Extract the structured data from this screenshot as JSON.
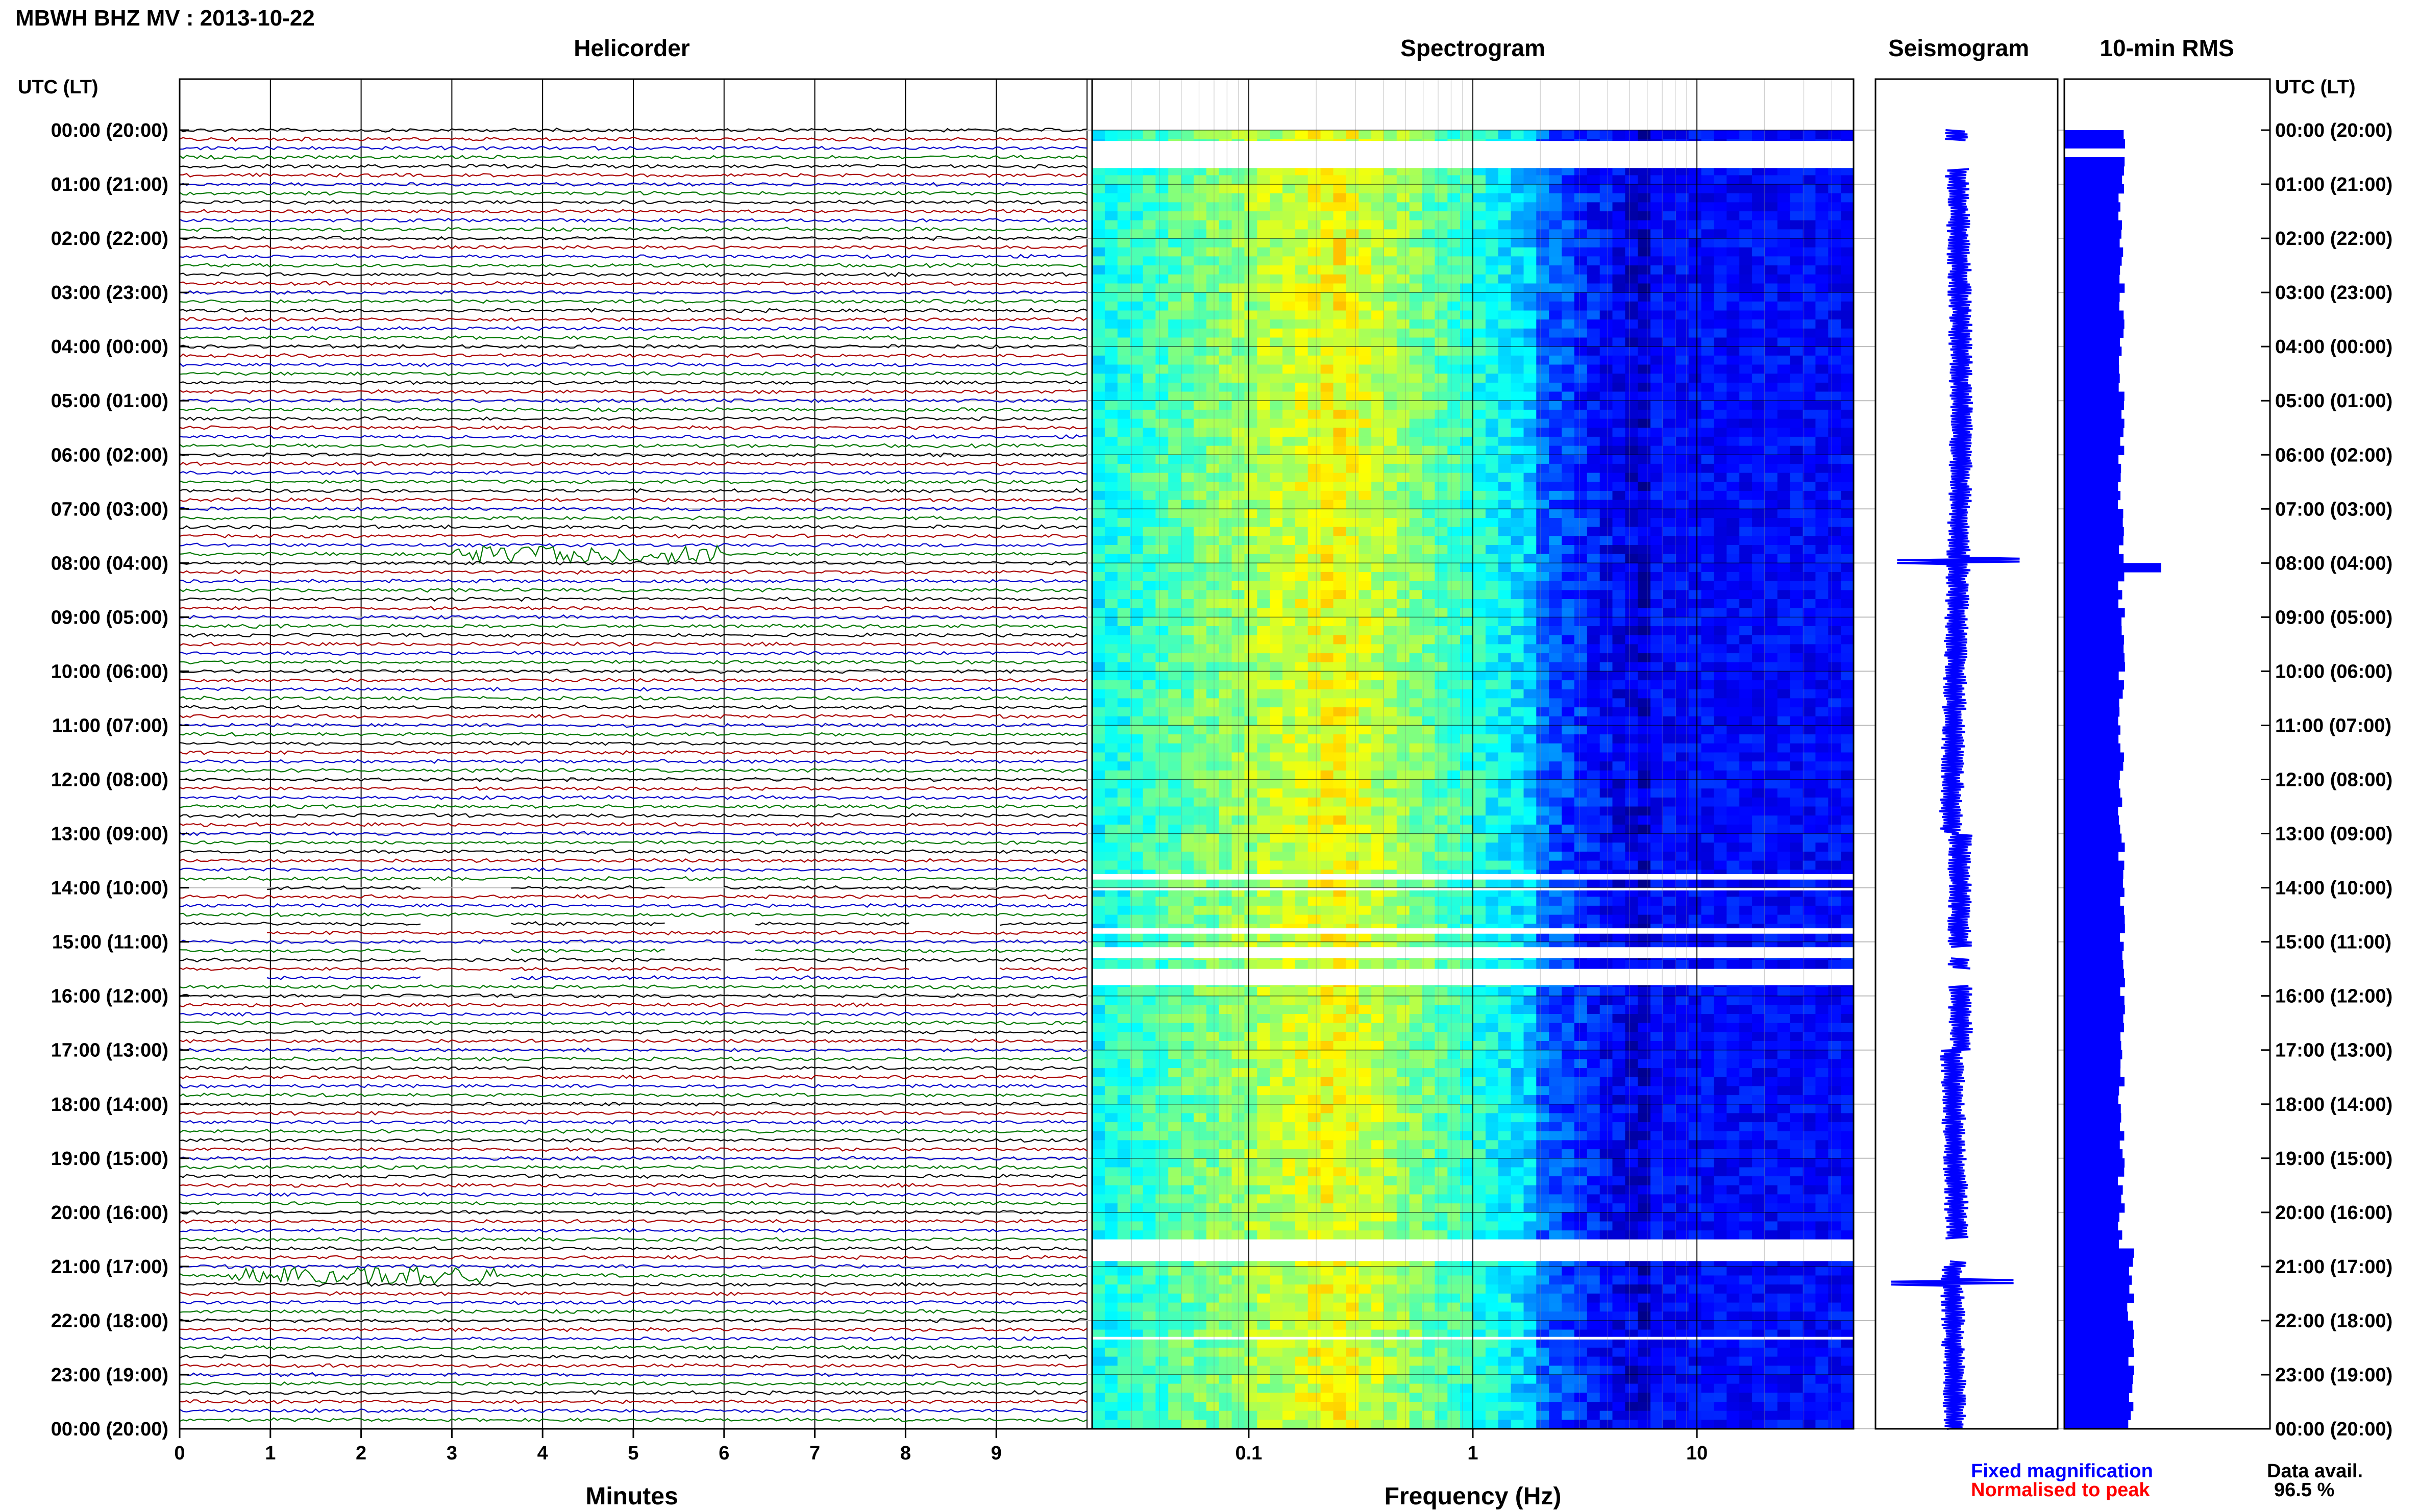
{
  "title": "MBWH BHZ MV : 2013-10-22",
  "panels": {
    "helicorder": "Helicorder",
    "spectrogram": "Spectrogram",
    "seismogram": "Seismogram",
    "rms": "10-min RMS"
  },
  "axis_header": "UTC (LT)",
  "time_labels": [
    "00:00 (20:00)",
    "01:00 (21:00)",
    "02:00 (22:00)",
    "03:00 (23:00)",
    "04:00 (00:00)",
    "05:00 (01:00)",
    "06:00 (02:00)",
    "07:00 (03:00)",
    "08:00 (04:00)",
    "09:00 (05:00)",
    "10:00 (06:00)",
    "11:00 (07:00)",
    "12:00 (08:00)",
    "13:00 (09:00)",
    "14:00 (10:00)",
    "15:00 (11:00)",
    "16:00 (12:00)",
    "17:00 (13:00)",
    "18:00 (14:00)",
    "19:00 (15:00)",
    "20:00 (16:00)",
    "21:00 (17:00)",
    "22:00 (18:00)",
    "23:00 (19:00)",
    "00:00 (20:00)"
  ],
  "legend": {
    "fixed": "Fixed magnification",
    "normalised": "Normalised to peak",
    "data_avail_label": "Data avail.",
    "data_avail_value": "96.5 %"
  },
  "colors": {
    "trace_cycle": [
      "#000000",
      "#aa0000",
      "#0000cc",
      "#007700"
    ],
    "fixed": "#0000ff",
    "normalised": "#ff0000",
    "rms_fill": "#0000ff"
  },
  "chart_data": [
    {
      "type": "line",
      "panel": "Helicorder",
      "xlabel": "Minutes",
      "x_ticks": [
        "0",
        "1",
        "2",
        "3",
        "4",
        "5",
        "6",
        "7",
        "8",
        "9"
      ],
      "xlim": [
        0,
        10
      ],
      "rows": 144,
      "row_minutes": 10,
      "events": [
        {
          "hour_utc": 7.9,
          "minute": 4.5,
          "note": "green trace burst"
        },
        {
          "hour_utc": 21.2,
          "minute": 2.0,
          "note": "spike"
        }
      ],
      "gaps_utc_hours": [
        [
          14.0,
          14.1
        ],
        [
          14.7,
          14.85
        ],
        [
          15.2,
          15.3
        ],
        [
          15.6,
          15.75
        ]
      ]
    },
    {
      "type": "heatmap",
      "panel": "Spectrogram",
      "xlabel": "Frequency (Hz)",
      "x_scale": "log",
      "x_ticks": [
        "0.1",
        "1",
        "10"
      ],
      "xlim": [
        0.02,
        50
      ],
      "peak_frequency_hz": 0.25,
      "gaps_utc_hours": [
        [
          0.2,
          0.7
        ],
        [
          13.75,
          13.85
        ],
        [
          14.0,
          14.05
        ],
        [
          14.75,
          14.85
        ],
        [
          15.1,
          15.3
        ],
        [
          15.5,
          15.8
        ],
        [
          20.5,
          20.9
        ],
        [
          22.3,
          22.35
        ]
      ]
    },
    {
      "type": "line",
      "panel": "Seismogram",
      "events_utc_hours": [
        7.95,
        21.3
      ]
    },
    {
      "type": "bar",
      "panel": "10-min RMS",
      "interval_minutes": 10,
      "peak_hour_utc": 7.95
    }
  ]
}
